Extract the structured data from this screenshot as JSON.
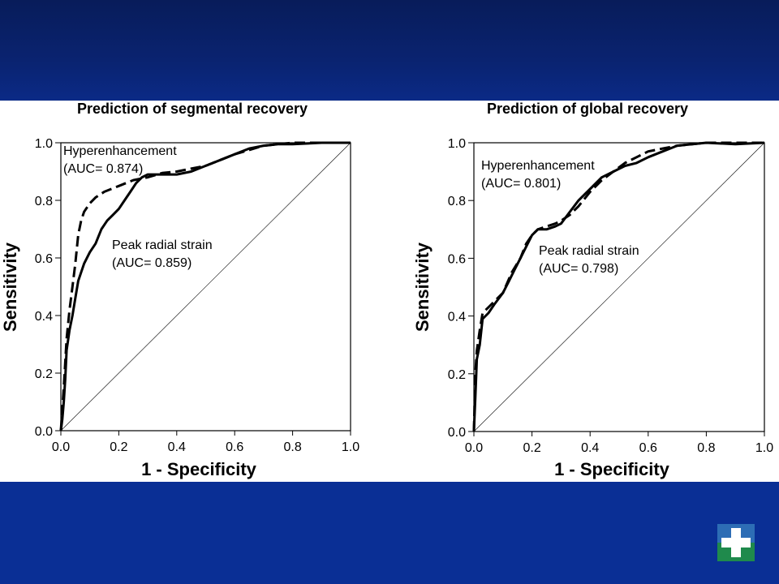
{
  "colors": {
    "top_band": "#0a2370",
    "bottom_band": "#0a2f95",
    "figure_bg": "#ffffff",
    "ink": "#000000",
    "logo_green": "#1f8a4c",
    "logo_blue": "#2d6db5"
  },
  "logo": {
    "icon": "medical-cross-logo-icon"
  },
  "chart_data": [
    {
      "type": "line",
      "title": "Prediction of segmental recovery",
      "xlabel": "1 - Specificity",
      "ylabel": "Sensitivity",
      "xlim": [
        0,
        1
      ],
      "ylim": [
        0,
        1
      ],
      "x_ticks": [
        "0.0",
        "0.2",
        "0.4",
        "0.6",
        "0.8",
        "1.0"
      ],
      "y_ticks": [
        "0.0",
        "0.2",
        "0.4",
        "0.6",
        "0.8",
        "1.0"
      ],
      "grid": false,
      "reference_line": {
        "x": [
          0,
          1
        ],
        "y": [
          0,
          1
        ]
      },
      "series": [
        {
          "name": "Hyperenhancement",
          "auc_label": "(AUC= 0.874)",
          "dash": "dashed",
          "x": [
            0,
            0.01,
            0.02,
            0.03,
            0.04,
            0.05,
            0.06,
            0.07,
            0.08,
            0.1,
            0.12,
            0.15,
            0.2,
            0.25,
            0.3,
            0.35,
            0.4,
            0.45,
            0.5,
            0.55,
            0.6,
            0.65,
            0.7,
            0.75,
            0.8,
            0.9,
            1.0
          ],
          "y": [
            0,
            0.15,
            0.32,
            0.42,
            0.5,
            0.58,
            0.68,
            0.73,
            0.76,
            0.79,
            0.81,
            0.83,
            0.85,
            0.87,
            0.88,
            0.895,
            0.9,
            0.91,
            0.92,
            0.94,
            0.96,
            0.975,
            0.99,
            0.995,
            1.0,
            1.0,
            1.0
          ]
        },
        {
          "name": "Peak radial strain",
          "auc_label": "(AUC= 0.859)",
          "dash": "solid",
          "x": [
            0,
            0.005,
            0.01,
            0.015,
            0.02,
            0.03,
            0.04,
            0.05,
            0.06,
            0.07,
            0.08,
            0.1,
            0.12,
            0.14,
            0.16,
            0.18,
            0.2,
            0.22,
            0.24,
            0.26,
            0.28,
            0.3,
            0.35,
            0.4,
            0.45,
            0.5,
            0.55,
            0.6,
            0.65,
            0.7,
            0.75,
            0.8,
            0.9,
            1.0
          ],
          "y": [
            0,
            0.04,
            0.1,
            0.18,
            0.28,
            0.35,
            0.4,
            0.46,
            0.52,
            0.55,
            0.58,
            0.62,
            0.65,
            0.7,
            0.73,
            0.75,
            0.77,
            0.8,
            0.83,
            0.86,
            0.88,
            0.89,
            0.89,
            0.89,
            0.9,
            0.92,
            0.94,
            0.96,
            0.98,
            0.99,
            0.995,
            0.995,
            1.0,
            1.0
          ]
        }
      ]
    },
    {
      "type": "line",
      "title": "Prediction of global recovery",
      "xlabel": "1 - Specificity",
      "ylabel": "Sensitivity",
      "xlim": [
        0,
        1
      ],
      "ylim": [
        0,
        1
      ],
      "x_ticks": [
        "0.0",
        "0.2",
        "0.4",
        "0.6",
        "0.8",
        "1.0"
      ],
      "y_ticks": [
        "0.0",
        "0.2",
        "0.4",
        "0.6",
        "0.8",
        "1.0"
      ],
      "grid": false,
      "reference_line": {
        "x": [
          0,
          1
        ],
        "y": [
          0,
          1
        ]
      },
      "series": [
        {
          "name": "Hyperenhancement",
          "auc_label": "(AUC= 0.801)",
          "dash": "dashed",
          "x": [
            0,
            0.005,
            0.01,
            0.02,
            0.03,
            0.05,
            0.07,
            0.1,
            0.13,
            0.16,
            0.18,
            0.2,
            0.22,
            0.25,
            0.28,
            0.3,
            0.33,
            0.36,
            0.4,
            0.44,
            0.48,
            0.52,
            0.56,
            0.6,
            0.65,
            0.7,
            0.8,
            0.9,
            1.0
          ],
          "y": [
            0,
            0.2,
            0.28,
            0.35,
            0.41,
            0.43,
            0.45,
            0.48,
            0.55,
            0.6,
            0.65,
            0.68,
            0.7,
            0.71,
            0.72,
            0.73,
            0.75,
            0.78,
            0.83,
            0.87,
            0.9,
            0.93,
            0.95,
            0.97,
            0.98,
            0.99,
            1.0,
            1.0,
            1.0
          ]
        },
        {
          "name": "Peak radial strain",
          "auc_label": "(AUC= 0.798)",
          "dash": "solid",
          "x": [
            0,
            0.005,
            0.01,
            0.02,
            0.03,
            0.05,
            0.07,
            0.1,
            0.12,
            0.14,
            0.16,
            0.18,
            0.2,
            0.22,
            0.25,
            0.28,
            0.3,
            0.33,
            0.36,
            0.4,
            0.44,
            0.48,
            0.52,
            0.56,
            0.6,
            0.65,
            0.7,
            0.8,
            0.9,
            1.0
          ],
          "y": [
            0,
            0.12,
            0.25,
            0.3,
            0.39,
            0.41,
            0.44,
            0.48,
            0.52,
            0.56,
            0.6,
            0.64,
            0.68,
            0.7,
            0.7,
            0.71,
            0.72,
            0.76,
            0.8,
            0.84,
            0.88,
            0.9,
            0.92,
            0.93,
            0.95,
            0.97,
            0.99,
            1.0,
            0.995,
            1.0
          ]
        }
      ]
    }
  ]
}
